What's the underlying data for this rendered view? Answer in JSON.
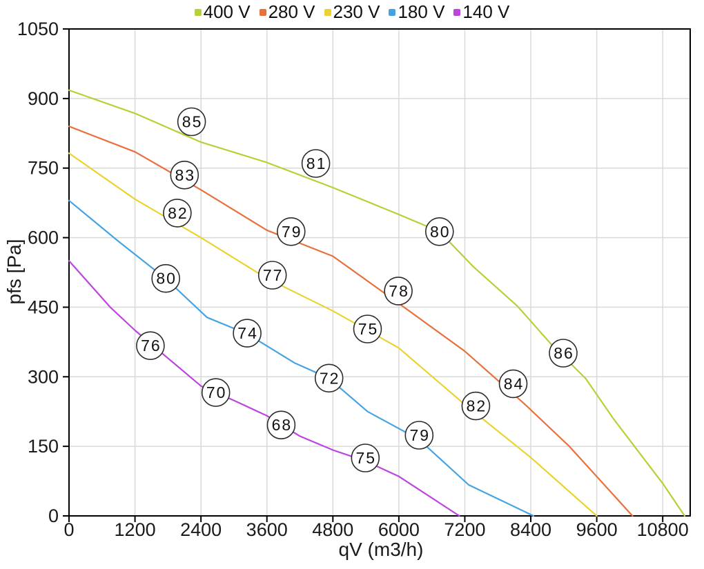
{
  "page": {
    "background": "#ffffff"
  },
  "colors": {
    "text": "#1a1a1a",
    "grid": "#d9d9d9",
    "axis": "#000000",
    "circle_fill": "#ffffff",
    "circle_stroke": "#2b2b2b"
  },
  "chart_data": {
    "type": "line",
    "title": "",
    "xlabel": "qV (m3/h)",
    "ylabel": "pfs [Pa]",
    "xlim": [
      0,
      11300
    ],
    "ylim": [
      0,
      1050
    ],
    "x_ticks": [
      0,
      1200,
      2400,
      3600,
      4800,
      6000,
      7200,
      8400,
      9600,
      10800
    ],
    "y_ticks": [
      0,
      150,
      300,
      450,
      600,
      750,
      900,
      1050
    ],
    "grid": true,
    "legend_position": "top-center",
    "series": [
      {
        "name": "400 V",
        "color": "#b2d235",
        "points": [
          [
            0,
            918
          ],
          [
            1200,
            868
          ],
          [
            2400,
            806
          ],
          [
            3600,
            762
          ],
          [
            4800,
            708
          ],
          [
            6000,
            650
          ],
          [
            6740,
            613
          ],
          [
            7350,
            538
          ],
          [
            8160,
            452
          ],
          [
            8780,
            369
          ],
          [
            9400,
            296
          ],
          [
            9900,
            210
          ],
          [
            10800,
            70
          ],
          [
            11200,
            0
          ]
        ],
        "point_labels": [
          {
            "text": "85",
            "x": 2230,
            "y": 850
          },
          {
            "text": "81",
            "x": 4490,
            "y": 760
          },
          {
            "text": "80",
            "x": 6740,
            "y": 613
          },
          {
            "text": "86",
            "x": 8990,
            "y": 351
          }
        ]
      },
      {
        "name": "280 V",
        "color": "#e8703d",
        "points": [
          [
            0,
            840
          ],
          [
            1200,
            785
          ],
          [
            2400,
            703
          ],
          [
            3600,
            616
          ],
          [
            4800,
            560
          ],
          [
            6000,
            458
          ],
          [
            7200,
            355
          ],
          [
            8280,
            242
          ],
          [
            9100,
            150
          ],
          [
            10250,
            0
          ]
        ],
        "point_labels": [
          {
            "text": "83",
            "x": 2100,
            "y": 735
          },
          {
            "text": "79",
            "x": 4040,
            "y": 613
          },
          {
            "text": "78",
            "x": 5990,
            "y": 485
          },
          {
            "text": "84",
            "x": 8080,
            "y": 285
          }
        ]
      },
      {
        "name": "230 V",
        "color": "#ecd22e",
        "points": [
          [
            0,
            782
          ],
          [
            1200,
            683
          ],
          [
            2400,
            600
          ],
          [
            3600,
            512
          ],
          [
            4800,
            442
          ],
          [
            6000,
            362
          ],
          [
            7200,
            240
          ],
          [
            8400,
            126
          ],
          [
            9600,
            0
          ]
        ],
        "point_labels": [
          {
            "text": "82",
            "x": 1970,
            "y": 653
          },
          {
            "text": "77",
            "x": 3700,
            "y": 519
          },
          {
            "text": "75",
            "x": 5430,
            "y": 403
          },
          {
            "text": "82",
            "x": 7400,
            "y": 237
          }
        ]
      },
      {
        "name": "180 V",
        "color": "#45a3e3",
        "points": [
          [
            0,
            680
          ],
          [
            900,
            592
          ],
          [
            1755,
            512
          ],
          [
            2510,
            428
          ],
          [
            3250,
            392
          ],
          [
            4100,
            330
          ],
          [
            4725,
            297
          ],
          [
            5430,
            225
          ],
          [
            6365,
            165
          ],
          [
            7270,
            67
          ],
          [
            8450,
            0
          ]
        ],
        "point_labels": [
          {
            "text": "80",
            "x": 1760,
            "y": 512
          },
          {
            "text": "74",
            "x": 3240,
            "y": 394
          },
          {
            "text": "72",
            "x": 4730,
            "y": 297
          },
          {
            "text": "79",
            "x": 6370,
            "y": 174
          }
        ]
      },
      {
        "name": "140 V",
        "color": "#bd44dd",
        "points": [
          [
            0,
            550
          ],
          [
            750,
            450
          ],
          [
            1200,
            400
          ],
          [
            1700,
            350
          ],
          [
            2400,
            280
          ],
          [
            3000,
            249
          ],
          [
            3600,
            216
          ],
          [
            4200,
            172
          ],
          [
            4800,
            142
          ],
          [
            5400,
            118
          ],
          [
            6000,
            85
          ],
          [
            7100,
            0
          ]
        ],
        "point_labels": [
          {
            "text": "76",
            "x": 1480,
            "y": 367
          },
          {
            "text": "70",
            "x": 2670,
            "y": 266
          },
          {
            "text": "68",
            "x": 3860,
            "y": 196
          },
          {
            "text": "75",
            "x": 5390,
            "y": 125
          }
        ]
      }
    ]
  }
}
